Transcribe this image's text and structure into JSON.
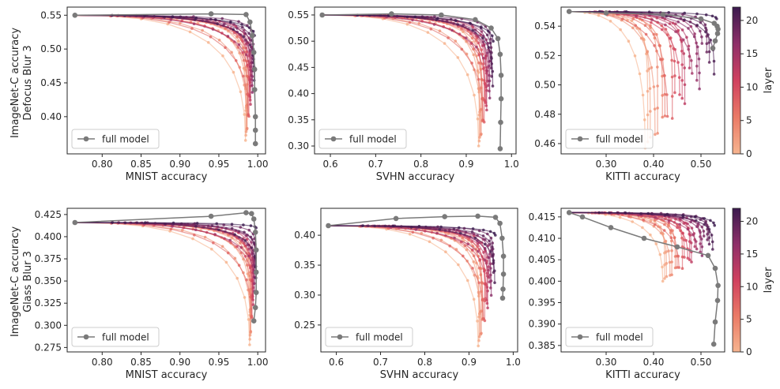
{
  "figure": {
    "row_labels": [
      [
        "ImageNet-C accuracy",
        "Defocus Blur 3"
      ],
      [
        "ImageNet-C accuracy",
        "Glass Blur 3"
      ]
    ],
    "legend_label": "full model",
    "colorbar": {
      "label": "layer",
      "ticks": [
        0,
        5,
        10,
        15,
        20
      ],
      "range": [
        0,
        22
      ]
    }
  },
  "chart_data": [
    {
      "type": "line",
      "xlabel": "MNIST accuracy",
      "ylabel": "ImageNet-C accuracy, Defocus Blur 3",
      "xlim": [
        0.755,
        1.01
      ],
      "ylim": [
        0.345,
        0.562
      ],
      "xticks": [
        0.8,
        0.85,
        0.9,
        0.95,
        1.0
      ],
      "yticks": [
        0.4,
        0.45,
        0.5,
        0.55
      ],
      "tick_decimals": 2,
      "full_model": {
        "x": [
          0.765,
          0.94,
          0.985,
          0.99,
          0.993,
          0.995,
          0.996,
          0.996,
          0.997,
          0.997,
          0.997
        ],
        "y": [
          0.55,
          0.552,
          0.551,
          0.54,
          0.52,
          0.495,
          0.47,
          0.44,
          0.4,
          0.38,
          0.36
        ]
      },
      "start": [
        0.765,
        0.55
      ],
      "end_x": [
        0.978,
        0.996
      ],
      "end_y": [
        0.365,
        0.52
      ]
    },
    {
      "type": "line",
      "xlabel": "SVHN accuracy",
      "ylabel": "ImageNet-C accuracy, Defocus Blur 3",
      "xlim": [
        0.565,
        1.01
      ],
      "ylim": [
        0.285,
        0.565
      ],
      "xticks": [
        0.6,
        0.7,
        0.8,
        0.9,
        1.0
      ],
      "yticks": [
        0.3,
        0.35,
        0.4,
        0.45,
        0.5,
        0.55
      ],
      "tick_decimals": 2,
      "full_model": {
        "x": [
          0.582,
          0.735,
          0.845,
          0.92,
          0.955,
          0.97,
          0.975,
          0.977,
          0.977,
          0.976,
          0.975
        ],
        "y": [
          0.55,
          0.552,
          0.55,
          0.541,
          0.525,
          0.505,
          0.475,
          0.435,
          0.39,
          0.345,
          0.295
        ]
      },
      "start": [
        0.582,
        0.55
      ],
      "end_x": [
        0.91,
        0.96
      ],
      "end_y": [
        0.3,
        0.5
      ]
    },
    {
      "type": "line",
      "xlabel": "KITTI accuracy",
      "ylabel": "ImageNet-C accuracy, Defocus Blur 3",
      "xlim": [
        0.205,
        0.55
      ],
      "ylim": [
        0.453,
        0.553
      ],
      "xticks": [
        0.3,
        0.4,
        0.5
      ],
      "yticks": [
        0.46,
        0.48,
        0.5,
        0.52,
        0.54
      ],
      "tick_decimals": 2,
      "full_model": {
        "x": [
          0.222,
          0.3,
          0.42,
          0.5,
          0.528,
          0.534,
          0.536,
          0.535,
          0.53,
          0.525
        ],
        "y": [
          0.55,
          0.549,
          0.548,
          0.545,
          0.542,
          0.54,
          0.538,
          0.535,
          0.53,
          0.525
        ]
      },
      "start": [
        0.222,
        0.55
      ],
      "end_x": [
        0.3,
        0.535
      ],
      "end_y": [
        0.457,
        0.545
      ]
    },
    {
      "type": "line",
      "xlabel": "MNIST accuracy",
      "ylabel": "ImageNet-C accuracy, Glass Blur 3",
      "xlim": [
        0.755,
        1.01
      ],
      "ylim": [
        0.27,
        0.432
      ],
      "xticks": [
        0.8,
        0.85,
        0.9,
        0.95,
        1.0
      ],
      "yticks": [
        0.275,
        0.3,
        0.325,
        0.35,
        0.375,
        0.4,
        0.425
      ],
      "tick_decimals": 3,
      "full_model": {
        "x": [
          0.765,
          0.94,
          0.985,
          0.992,
          0.995,
          0.997,
          0.998,
          0.998,
          0.998,
          0.997,
          0.995
        ],
        "y": [
          0.416,
          0.423,
          0.427,
          0.426,
          0.42,
          0.405,
          0.385,
          0.36,
          0.337,
          0.32,
          0.305
        ]
      },
      "start": [
        0.765,
        0.416
      ],
      "end_x": [
        0.985,
        0.998
      ],
      "end_y": [
        0.278,
        0.41
      ]
    },
    {
      "type": "line",
      "xlabel": "SVHN accuracy",
      "ylabel": "ImageNet-C accuracy, Glass Blur 3",
      "xlim": [
        0.565,
        1.01
      ],
      "ylim": [
        0.205,
        0.445
      ],
      "xticks": [
        0.6,
        0.7,
        0.8,
        0.9,
        1.0
      ],
      "yticks": [
        0.25,
        0.3,
        0.35,
        0.4
      ],
      "tick_decimals": 2,
      "full_model": {
        "x": [
          0.582,
          0.735,
          0.845,
          0.92,
          0.96,
          0.97,
          0.975,
          0.978,
          0.978,
          0.977,
          0.976
        ],
        "y": [
          0.416,
          0.428,
          0.431,
          0.432,
          0.43,
          0.42,
          0.395,
          0.365,
          0.335,
          0.31,
          0.295
        ]
      },
      "start": [
        0.582,
        0.416
      ],
      "end_x": [
        0.9,
        0.96
      ],
      "end_y": [
        0.215,
        0.4
      ]
    },
    {
      "type": "line",
      "xlabel": "KITTI accuracy",
      "ylabel": "ImageNet-C accuracy, Glass Blur 3",
      "xlim": [
        0.205,
        0.55
      ],
      "ylim": [
        0.3835,
        0.417
      ],
      "xticks": [
        0.3,
        0.4,
        0.5
      ],
      "yticks": [
        0.385,
        0.39,
        0.395,
        0.4,
        0.405,
        0.41,
        0.415
      ],
      "tick_decimals": 3,
      "full_model": {
        "x": [
          0.222,
          0.25,
          0.31,
          0.38,
          0.45,
          0.515,
          0.53,
          0.536,
          0.535,
          0.53,
          0.527
        ],
        "y": [
          0.416,
          0.415,
          0.4125,
          0.41,
          0.408,
          0.406,
          0.403,
          0.399,
          0.3955,
          0.3905,
          0.3853
        ]
      },
      "start": [
        0.222,
        0.416
      ],
      "end_x": [
        0.36,
        0.53
      ],
      "end_y": [
        0.4,
        0.413
      ]
    }
  ]
}
